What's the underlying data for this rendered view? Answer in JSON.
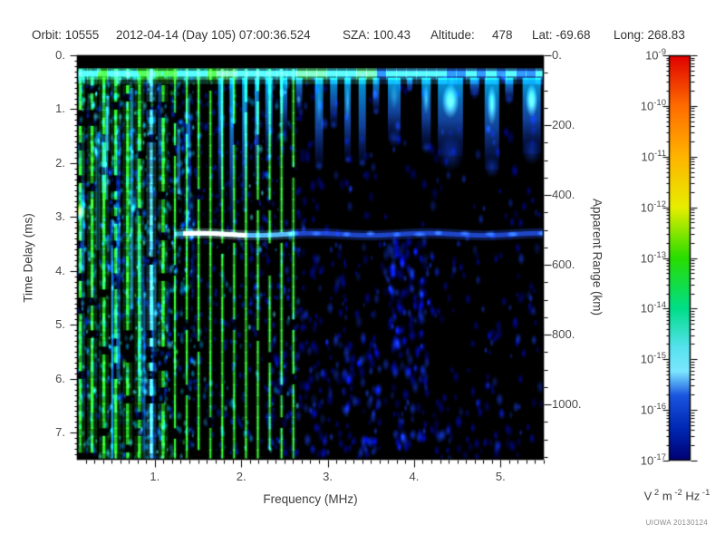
{
  "header": {
    "segments": [
      {
        "text": "Orbit: 10555"
      },
      {
        "text": "2012-04-14 (Day 105) 07:00:36.524"
      },
      {
        "text": "SZA: 100.43"
      },
      {
        "text": "Altitude:"
      },
      {
        "text": "478"
      },
      {
        "text": "Lat: -69.68"
      },
      {
        "text": "Long: 268.83"
      }
    ]
  },
  "footer": {
    "credit": "UIOWA 20130124"
  },
  "chart_data": {
    "type": "heatmap",
    "description": "Radar sounder ionogram: received spectral density vs frequency and time delay",
    "grid": false,
    "x_axis": {
      "label": "Frequency (MHz)",
      "min": 0.1,
      "max": 5.5,
      "minor_step": 0.1,
      "major_ticks": [
        {
          "value": 1,
          "label": "1."
        },
        {
          "value": 2,
          "label": "2."
        },
        {
          "value": 3,
          "label": "3."
        },
        {
          "value": 4,
          "label": "4."
        },
        {
          "value": 5,
          "label": "5."
        }
      ]
    },
    "y_axis": {
      "label": "Time Delay (ms)",
      "min": 0,
      "max": 7.5,
      "inverted": true,
      "minor_step": 0.1,
      "major_ticks": [
        {
          "value": 0,
          "label": "0."
        },
        {
          "value": 1,
          "label": "1."
        },
        {
          "value": 2,
          "label": "2."
        },
        {
          "value": 3,
          "label": "3."
        },
        {
          "value": 4,
          "label": "4."
        },
        {
          "value": 5,
          "label": "5."
        },
        {
          "value": 6,
          "label": "6."
        },
        {
          "value": 7,
          "label": "7."
        }
      ]
    },
    "y2_axis": {
      "label": "Apparent Range (km)",
      "min": 0,
      "max": 1158,
      "minor_step": 50,
      "major_ticks": [
        {
          "value": 0,
          "label": "0."
        },
        {
          "value": 200,
          "label": "200."
        },
        {
          "value": 400,
          "label": "400."
        },
        {
          "value": 600,
          "label": "600."
        },
        {
          "value": 800,
          "label": "800."
        },
        {
          "value": 1000,
          "label": "1000."
        }
      ]
    },
    "colorbar": {
      "scale": "log",
      "top_value": "1e-9",
      "bottom_value": "1e-17",
      "tick_exponents": [
        -9,
        -10,
        -11,
        -12,
        -13,
        -14,
        -15,
        -16,
        -17
      ],
      "unit_parts": [
        [
          "V",
          "2"
        ],
        [
          "m",
          "-2"
        ],
        [
          "Hz",
          "-1"
        ]
      ],
      "gradient": [
        [
          0,
          "#e00000"
        ],
        [
          0.125,
          "#ff6c00"
        ],
        [
          0.25,
          "#ffb400"
        ],
        [
          0.375,
          "#e8ee00"
        ],
        [
          0.5,
          "#28dd00"
        ],
        [
          0.625,
          "#00dd88"
        ],
        [
          0.72,
          "#55e2ee"
        ],
        [
          0.78,
          "#7ce6ff"
        ],
        [
          0.84,
          "#1a55e0"
        ],
        [
          0.92,
          "#0028b4"
        ],
        [
          1,
          "#000072"
        ]
      ]
    },
    "features": {
      "seed": 1337,
      "background_color": "#000000",
      "harmonic_stripes": {
        "base_mhz": 0.137,
        "count": 19,
        "note": "electron plasma frequency harmonics, green/cyan vertical lines"
      },
      "top_band": {
        "delay_ms_from": 0.24,
        "delay_ms_to": 0.45,
        "note": "strong horizontal echo band across all frequencies"
      },
      "drips": [
        {
          "f": 1.76,
          "to_ms": 2.8,
          "w": 0.055,
          "bright": 0.15
        },
        {
          "f": 1.89,
          "to_ms": 3.3,
          "w": 0.05,
          "bright": 0.1
        },
        {
          "f": 2.04,
          "to_ms": 2.9,
          "w": 0.06,
          "bright": 0.2
        },
        {
          "f": 2.18,
          "to_ms": 2.4,
          "w": 0.05,
          "bright": 0.1
        },
        {
          "f": 2.32,
          "to_ms": 1.92,
          "w": 0.084,
          "bright": 0
        },
        {
          "f": 2.49,
          "to_ms": 1.5,
          "w": 0.084,
          "bright": 0
        },
        {
          "f": 2.67,
          "to_ms": 0.96,
          "w": 0.073,
          "bright": 0
        },
        {
          "f": 2.9,
          "to_ms": 2.09,
          "w": 0.094,
          "bright": 0.2
        },
        {
          "f": 3.07,
          "to_ms": 1.33,
          "w": 0.084,
          "bright": 0
        },
        {
          "f": 3.23,
          "to_ms": 1.97,
          "w": 0.073,
          "bright": 0.3
        },
        {
          "f": 3.4,
          "to_ms": 2.03,
          "w": 0.084,
          "bright": 0
        },
        {
          "f": 3.56,
          "to_ms": 1.08,
          "w": 0.073,
          "bright": 0
        },
        {
          "f": 3.77,
          "to_ms": 1.58,
          "w": 0.147,
          "bright": 0.2
        },
        {
          "f": 3.95,
          "to_ms": 0.66,
          "w": 0.063,
          "bright": 0
        },
        {
          "f": 4.14,
          "to_ms": 1.75,
          "w": 0.105,
          "bright": 0.4
        },
        {
          "f": 4.42,
          "to_ms": 1.87,
          "w": 0.29,
          "bright": 0.9
        },
        {
          "f": 4.7,
          "to_ms": 0.74,
          "w": 0.105,
          "bright": 0
        },
        {
          "f": 4.9,
          "to_ms": 2.12,
          "w": 0.168,
          "bright": 0.7
        },
        {
          "f": 5.1,
          "to_ms": 0.86,
          "w": 0.094,
          "bright": 0
        },
        {
          "f": 5.36,
          "to_ms": 1.83,
          "w": 0.21,
          "bright": 0.9
        }
      ],
      "surface_trace": {
        "delay_ms": 3.32,
        "f_start_mhz": 1.25,
        "bright_range_mhz": [
          1.35,
          2.05
        ]
      },
      "plasma_blob": {
        "f_mhz": 0.13,
        "delay_ms": 2.9
      },
      "noise_zones": [
        {
          "f": [
            0.1,
            1.46
          ],
          "t": [
            0.26,
            7.5
          ],
          "n": 1300,
          "palette": "mix",
          "r": [
            1.5,
            3.5
          ]
        },
        {
          "f": [
            1.46,
            2.67
          ],
          "t": [
            0.26,
            7.5
          ],
          "n": 450,
          "palette": "bluecyan",
          "r": [
            1.5,
            3.5
          ]
        },
        {
          "f": [
            2.67,
            5.5
          ],
          "t": [
            0.3,
            7.5
          ],
          "n": 260,
          "palette": "blue",
          "r": [
            2.5,
            5
          ],
          "bias": 1.4
        },
        {
          "f": [
            2.3,
            3.6
          ],
          "t": [
            5.3,
            7.45
          ],
          "n": 150,
          "palette": "blue",
          "r": [
            2.5,
            5
          ]
        },
        {
          "f": [
            3.72,
            4.17
          ],
          "t": [
            3.4,
            7.5
          ],
          "n": 150,
          "palette": "blue",
          "r": [
            2.5,
            5
          ]
        },
        {
          "f": [
            2.1,
            4.7
          ],
          "t": [
            3.45,
            4.9
          ],
          "n": 110,
          "palette": "blue",
          "r": [
            2,
            4.5
          ]
        },
        {
          "f": [
            4.2,
            5.45
          ],
          "t": [
            6.2,
            7.5
          ],
          "n": 45,
          "palette": "blue",
          "r": [
            2.5,
            5
          ]
        },
        {
          "f": [
            4.6,
            5.45
          ],
          "t": [
            2.5,
            6.2
          ],
          "n": 35,
          "palette": "blue",
          "r": [
            2,
            4
          ]
        }
      ]
    }
  }
}
